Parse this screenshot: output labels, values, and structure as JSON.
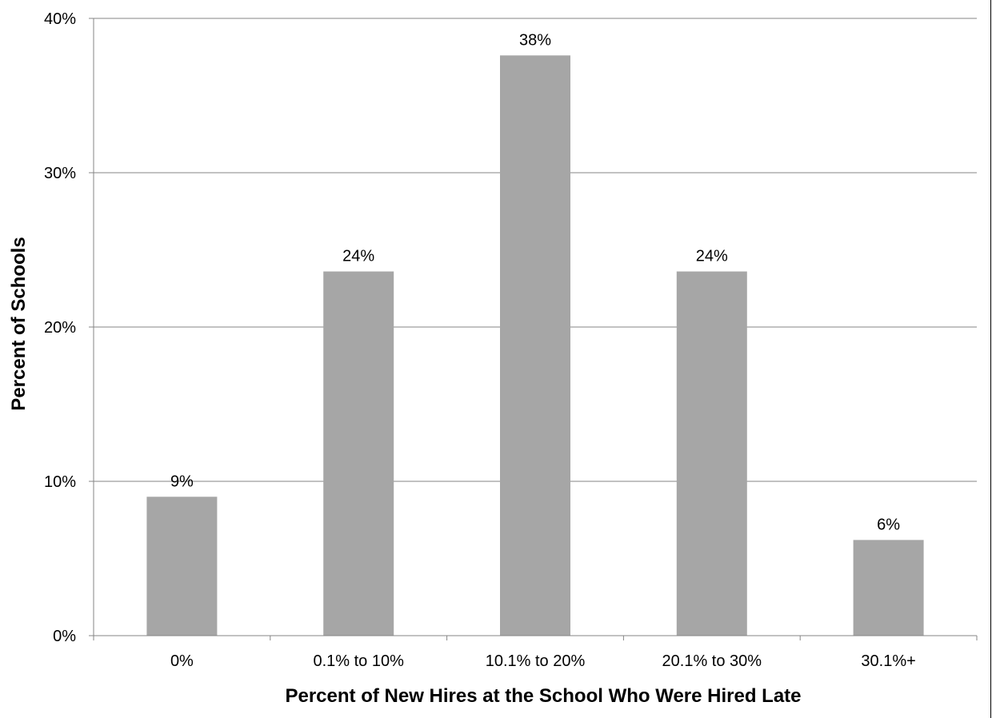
{
  "chart_data": {
    "type": "bar",
    "title": "",
    "xlabel": "Percent of New Hires at the School Who Were Hired Late",
    "ylabel": "Percent of Schools",
    "categories": [
      "0%",
      "0.1% to 10%",
      "10.1% to 20%",
      "20.1% to 30%",
      "30.1%+"
    ],
    "values": [
      9,
      23.6,
      37.6,
      23.6,
      6.2
    ],
    "data_labels": [
      "9%",
      "24%",
      "38%",
      "24%",
      "6%"
    ],
    "ylim": [
      0,
      40
    ],
    "yticks": [
      0,
      10,
      20,
      30,
      40
    ],
    "ytick_labels": [
      "0%",
      "10%",
      "20%",
      "30%",
      "40%"
    ],
    "grid": "horizontal",
    "legend": "none",
    "colors": {
      "bar": "#a6a6a6",
      "grid": "#868686",
      "axis": "#868686"
    }
  }
}
